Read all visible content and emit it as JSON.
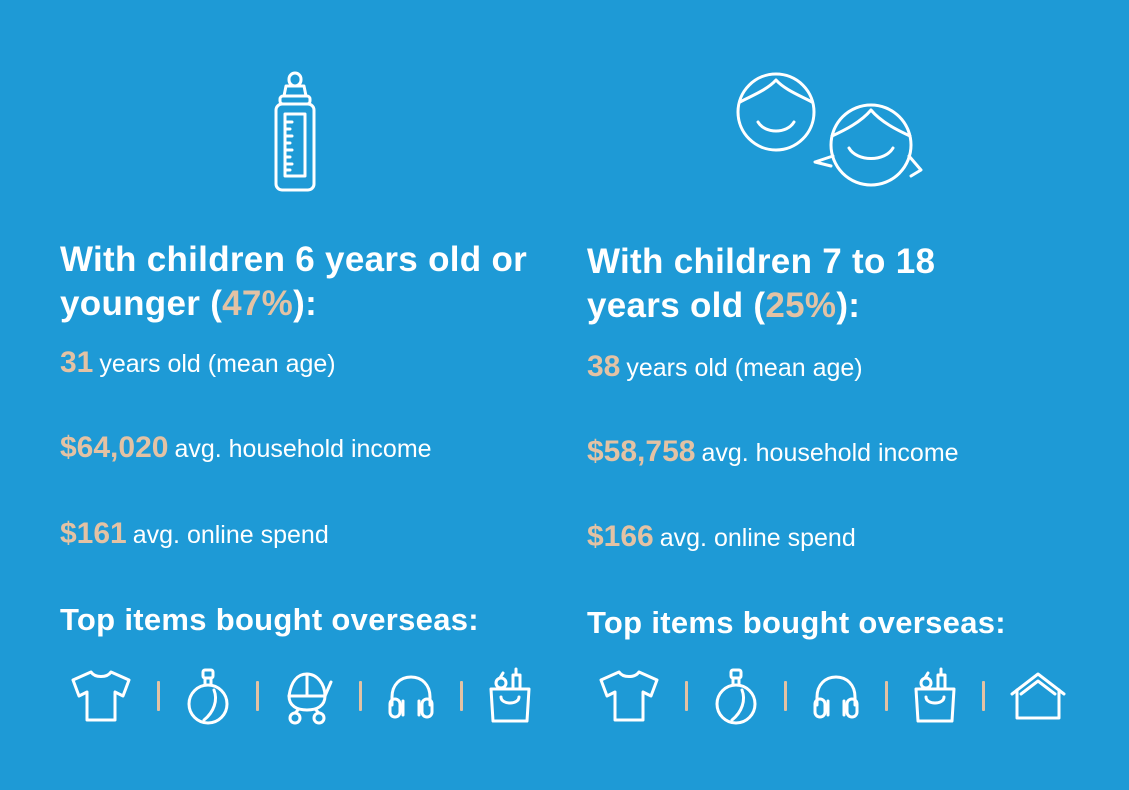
{
  "colors": {
    "background": "#1e9ad6",
    "accent": "#e3c2a4",
    "text": "#ffffff"
  },
  "left": {
    "icon": "baby-bottle-icon",
    "heading": {
      "before": "With children 6 years old or younger (",
      "pct": "47%",
      "after": "):"
    },
    "stats": [
      {
        "value": "31",
        "label": "years old (mean age)"
      },
      {
        "value": "$64,020",
        "label": "avg. household income"
      },
      {
        "value": "$161",
        "label": "avg. online spend"
      }
    ],
    "top_items_title": "Top items bought overseas:",
    "items": [
      "clothing-icon",
      "perfume-icon",
      "stroller-icon",
      "headphones-icon",
      "grocery-bag-icon"
    ]
  },
  "right": {
    "icon": "children-faces-icon",
    "heading": {
      "before": "With children 7 to 18 years old (",
      "pct": "25%",
      "after": "):"
    },
    "stats": [
      {
        "value": "38",
        "label": "years old (mean age)"
      },
      {
        "value": "$58,758",
        "label": "avg. household income"
      },
      {
        "value": "$166",
        "label": "avg. online spend"
      }
    ],
    "top_items_title": "Top items bought overseas:",
    "items": [
      "clothing-icon",
      "perfume-icon",
      "headphones-icon",
      "grocery-bag-icon",
      "home-icon"
    ]
  }
}
